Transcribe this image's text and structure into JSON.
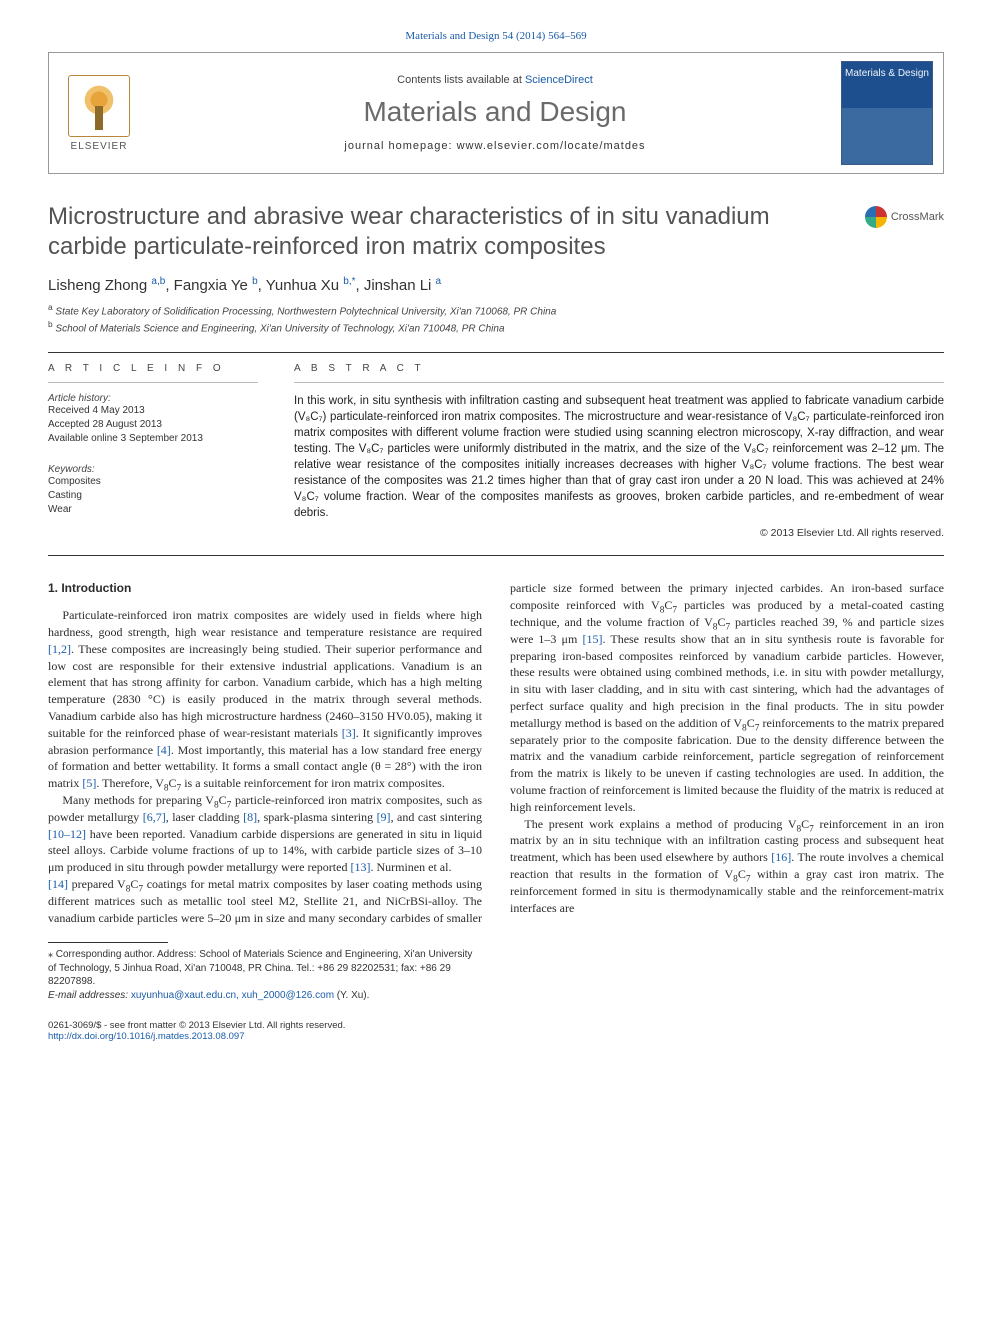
{
  "header": {
    "citation_link": "Materials and Design 54 (2014) 564–569",
    "contents_line_prefix": "Contents lists available at ",
    "contents_line_link": "ScienceDirect",
    "journal_title": "Materials and Design",
    "homepage_line": "journal homepage: www.elsevier.com/locate/matdes",
    "publisher_logo_text": "ELSEVIER",
    "cover_text": "Materials & Design"
  },
  "article": {
    "crossmark_label": "CrossMark",
    "title": "Microstructure and abrasive wear characteristics of in situ vanadium carbide particulate-reinforced iron matrix composites",
    "authors_html": "Lisheng Zhong <sup>a,b</sup>, Fangxia Ye <sup>b</sup>, Yunhua Xu <sup>b,*</sup>, Jinshan Li <sup>a</sup>",
    "affiliations": [
      "a State Key Laboratory of Solidification Processing, Northwestern Polytechnical University, Xi'an 710068, PR China",
      "b School of Materials Science and Engineering, Xi'an University of Technology, Xi'an 710048, PR China"
    ]
  },
  "info": {
    "heading": "A R T I C L E   I N F O",
    "history_label": "Article history:",
    "history": [
      "Received 4 May 2013",
      "Accepted 28 August 2013",
      "Available online 3 September 2013"
    ],
    "keywords_label": "Keywords:",
    "keywords": [
      "Composites",
      "Casting",
      "Wear"
    ]
  },
  "abstract": {
    "heading": "A B S T R A C T",
    "text": "In this work, in situ synthesis with infiltration casting and subsequent heat treatment was applied to fabricate vanadium carbide (V₈C₇) particulate-reinforced iron matrix composites. The microstructure and wear-resistance of V₈C₇ particulate-reinforced iron matrix composites with different volume fraction were studied using scanning electron microscopy, X-ray diffraction, and wear testing. The V₈C₇ particles were uniformly distributed in the matrix, and the size of the V₈C₇ reinforcement was 2–12 μm. The relative wear resistance of the composites initially increases decreases with higher V₈C₇ volume fractions. The best wear resistance of the composites was 21.2 times higher than that of gray cast iron under a 20 N load. This was achieved at 24% V₈C₇ volume fraction. Wear of the composites manifests as grooves, broken carbide particles, and re-embedment of wear debris.",
    "copyright": "© 2013 Elsevier Ltd. All rights reserved."
  },
  "body": {
    "section_heading": "1. Introduction",
    "p1": "Particulate-reinforced iron matrix composites are widely used in fields where high hardness, good strength, high wear resistance and temperature resistance are required [1,2]. These composites are increasingly being studied. Their superior performance and low cost are responsible for their extensive industrial applications. Vanadium is an element that has strong affinity for carbon. Vanadium carbide, which has a high melting temperature (2830 °C) is easily produced in the matrix through several methods. Vanadium carbide also has high microstructure hardness (2460–3150 HV0.05), making it suitable for the reinforced phase of wear-resistant materials [3]. It significantly improves abrasion performance [4]. Most importantly, this material has a low standard free energy of formation and better wettability. It forms a small contact angle (θ = 28°) with the iron matrix [5]. Therefore, V₈C₇ is a suitable reinforcement for iron matrix composites.",
    "p2": "Many methods for preparing V₈C₇ particle-reinforced iron matrix composites, such as powder metallurgy [6,7], laser cladding [8], spark-plasma sintering [9], and cast sintering [10–12] have been reported. Vanadium carbide dispersions are generated in situ in liquid steel alloys. Carbide volume fractions of up to 14%, with carbide particle sizes of 3–10 μm produced in situ through powder metallurgy were reported [13]. Nurminen et al.",
    "p3": "[14] prepared V₈C₇ coatings for metal matrix composites by laser coating methods using different matrices such as metallic tool steel M2, Stellite 21, and NiCrBSi-alloy. The vanadium carbide particles were 5–20 μm in size and many secondary carbides of smaller particle size formed between the primary injected carbides. An iron-based surface composite reinforced with V₈C₇ particles was produced by a metal-coated casting technique, and the volume fraction of V₈C₇ particles reached 39, % and particle sizes were 1–3 μm [15]. These results show that an in situ synthesis route is favorable for preparing iron-based composites reinforced by vanadium carbide particles. However, these results were obtained using combined methods, i.e. in situ with powder metallurgy, in situ with laser cladding, and in situ with cast sintering, which had the advantages of perfect surface quality and high precision in the final products. The in situ powder metallurgy method is based on the addition of V₈C₇ reinforcements to the matrix prepared separately prior to the composite fabrication. Due to the density difference between the matrix and the vanadium carbide reinforcement, particle segregation of reinforcement from the matrix is likely to be uneven if casting technologies are used. In addition, the volume fraction of reinforcement is limited because the fluidity of the matrix is reduced at high reinforcement levels.",
    "p4": "The present work explains a method of producing V₈C₇ reinforcement in an iron matrix by an in situ technique with an infiltration casting process and subsequent heat treatment, which has been used elsewhere by authors [16]. The route involves a chemical reaction that results in the formation of V₈C₇ within a gray cast iron matrix. The reinforcement formed in situ is thermodynamically stable and the reinforcement-matrix interfaces are"
  },
  "footnotes": {
    "corresponding": "⁎ Corresponding author. Address: School of Materials Science and Engineering, Xi'an University of Technology, 5 Jinhua Road, Xi'an 710048, PR China. Tel.: +86 29 82202531; fax: +86 29 82207898.",
    "email_label": "E-mail addresses: ",
    "emails": "xuyunhua@xaut.edu.cn, xuh_2000@126.com",
    "email_suffix": " (Y. Xu)."
  },
  "footer": {
    "line1": "0261-3069/$ - see front matter © 2013 Elsevier Ltd. All rights reserved.",
    "doi": "http://dx.doi.org/10.1016/j.matdes.2013.08.097"
  },
  "colors": {
    "link": "#1a5ba8",
    "heading_gray": "#535353"
  }
}
